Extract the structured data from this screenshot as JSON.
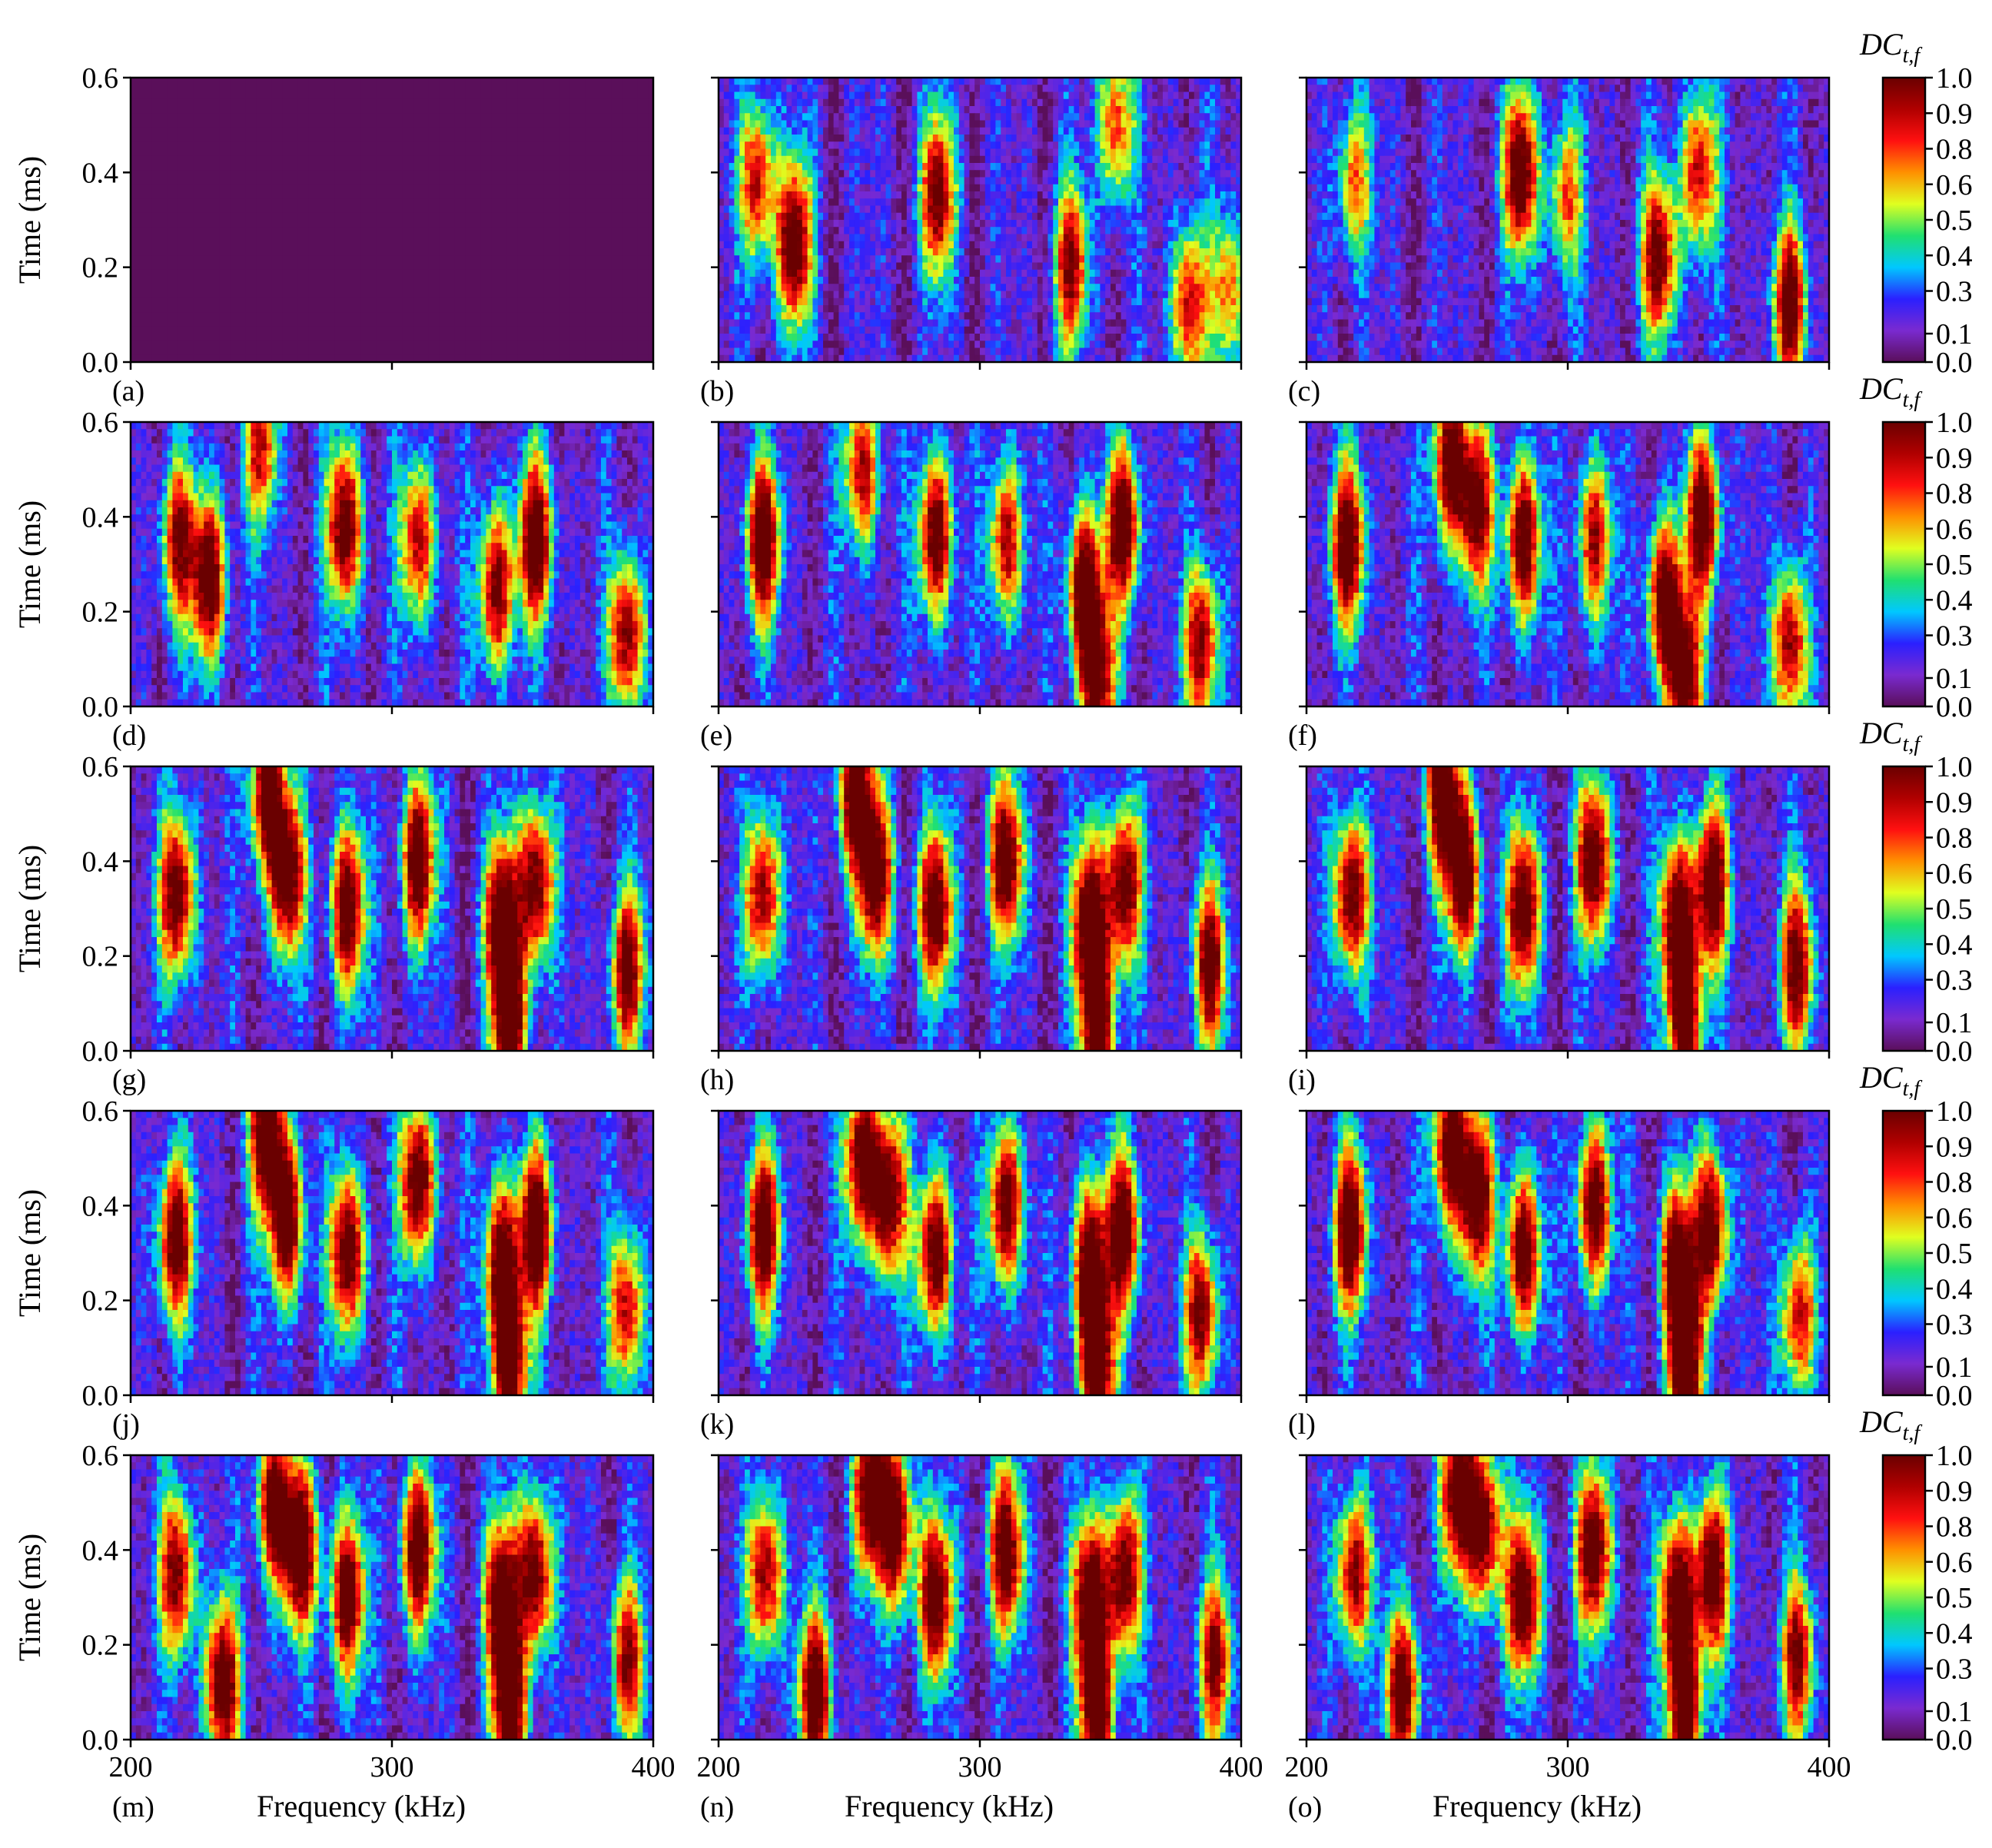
{
  "figure": {
    "panel_labels": [
      "(a)",
      "(b)",
      "(c)",
      "(d)",
      "(e)",
      "(f)",
      "(g)",
      "(h)",
      "(i)",
      "(j)",
      "(k)",
      "(l)",
      "(m)",
      "(n)",
      "(o)"
    ],
    "ylabel": "Time (ms)",
    "xlabel": "Frequency (kHz)",
    "colorbar_label": "DC",
    "colorbar_label_sub": "t,f",
    "colormap": [
      "#5a0f5a",
      "#7a2ad0",
      "#2a20ff",
      "#00c8ff",
      "#20e070",
      "#e0ff20",
      "#ff9000",
      "#ff1010",
      "#b00000",
      "#6a0000"
    ]
  },
  "chart_data": [
    {
      "type": "heatmap",
      "panel": "(a)",
      "x_range": [
        200,
        400
      ],
      "y_range": [
        0.0,
        0.6
      ],
      "value_range": [
        0.0,
        1.0
      ],
      "x_ticks": [
        200,
        300,
        400
      ],
      "y_ticks": [
        0.0,
        0.2,
        0.4,
        0.6
      ],
      "uniform_value": 0.0
    },
    {
      "type": "heatmap",
      "panel": "(b)",
      "x_range": [
        200,
        400
      ],
      "y_range": [
        0.0,
        0.6
      ],
      "value_range": [
        0.0,
        1.0
      ],
      "x_ticks": [
        200,
        300,
        400
      ],
      "y_ticks": [
        0.0,
        0.2,
        0.4,
        0.6
      ],
      "hotspots": [
        [
          215,
          0.38,
          0.8
        ],
        [
          229,
          0.25,
          1.0
        ],
        [
          284,
          0.35,
          0.9
        ],
        [
          352,
          0.5,
          0.7
        ],
        [
          335,
          0.2,
          0.8
        ],
        [
          380,
          0.12,
          0.8
        ],
        [
          395,
          0.15,
          0.6
        ]
      ]
    },
    {
      "type": "heatmap",
      "panel": "(c)",
      "x_range": [
        200,
        400
      ],
      "y_range": [
        0.0,
        0.6
      ],
      "value_range": [
        0.0,
        1.0
      ],
      "x_ticks": [
        200,
        300,
        400
      ],
      "y_ticks": [
        0.0,
        0.2,
        0.4,
        0.6
      ],
      "hotspots": [
        [
          218,
          0.38,
          0.6
        ],
        [
          282,
          0.4,
          1.0
        ],
        [
          299,
          0.35,
          0.6
        ],
        [
          350,
          0.4,
          0.8
        ],
        [
          335,
          0.22,
          0.9
        ],
        [
          385,
          0.12,
          0.9
        ]
      ]
    },
    {
      "type": "heatmap",
      "panel": "(d)",
      "x_range": [
        200,
        400
      ],
      "y_range": [
        0.0,
        0.6
      ],
      "value_range": [
        0.0,
        1.0
      ],
      "x_ticks": [
        200,
        300,
        400
      ],
      "y_ticks": [
        0.0,
        0.2,
        0.4,
        0.6
      ],
      "hotspots": [
        [
          218,
          0.35,
          0.8
        ],
        [
          230,
          0.27,
          1.0
        ],
        [
          250,
          0.55,
          0.7
        ],
        [
          282,
          0.38,
          1.0
        ],
        [
          310,
          0.35,
          0.8
        ],
        [
          340,
          0.25,
          0.9
        ],
        [
          355,
          0.35,
          1.0
        ],
        [
          390,
          0.15,
          0.9
        ]
      ]
    },
    {
      "type": "heatmap",
      "panel": "(e)",
      "x_range": [
        200,
        400
      ],
      "y_range": [
        0.0,
        0.6
      ],
      "value_range": [
        0.0,
        1.0
      ],
      "x_ticks": [
        200,
        300,
        400
      ],
      "y_ticks": [
        0.0,
        0.2,
        0.4,
        0.6
      ],
      "hotspots": [
        [
          217,
          0.35,
          1.0
        ],
        [
          255,
          0.5,
          0.8
        ],
        [
          283,
          0.36,
          1.0
        ],
        [
          310,
          0.35,
          0.8
        ],
        [
          340,
          0.25,
          1.0
        ],
        [
          355,
          0.38,
          1.0
        ],
        [
          345,
          0.05,
          0.9
        ],
        [
          385,
          0.13,
          0.9
        ]
      ]
    },
    {
      "type": "heatmap",
      "panel": "(f)",
      "x_range": [
        200,
        400
      ],
      "y_range": [
        0.0,
        0.6
      ],
      "value_range": [
        0.0,
        1.0
      ],
      "x_ticks": [
        200,
        300,
        400
      ],
      "y_ticks": [
        0.0,
        0.2,
        0.4,
        0.6
      ],
      "hotspots": [
        [
          216,
          0.34,
          1.0
        ],
        [
          255,
          0.52,
          1.0
        ],
        [
          265,
          0.42,
          0.9
        ],
        [
          283,
          0.35,
          1.0
        ],
        [
          310,
          0.35,
          0.8
        ],
        [
          337,
          0.22,
          1.0
        ],
        [
          352,
          0.4,
          1.0
        ],
        [
          345,
          0.05,
          0.9
        ],
        [
          385,
          0.13,
          0.9
        ]
      ]
    },
    {
      "type": "heatmap",
      "panel": "(g)",
      "x_range": [
        200,
        400
      ],
      "y_range": [
        0.0,
        0.6
      ],
      "value_range": [
        0.0,
        1.0
      ],
      "x_ticks": [
        200,
        300,
        400
      ],
      "y_ticks": [
        0.0,
        0.2,
        0.4,
        0.6
      ],
      "hotspots": [
        [
          218,
          0.33,
          1.0
        ],
        [
          252,
          0.55,
          1.0
        ],
        [
          260,
          0.37,
          1.0
        ],
        [
          283,
          0.3,
          1.0
        ],
        [
          310,
          0.4,
          1.0
        ],
        [
          342,
          0.28,
          1.0
        ],
        [
          355,
          0.35,
          1.0
        ],
        [
          345,
          0.05,
          1.0
        ],
        [
          390,
          0.17,
          0.9
        ]
      ]
    },
    {
      "type": "heatmap",
      "panel": "(h)",
      "x_range": [
        200,
        400
      ],
      "y_range": [
        0.0,
        0.6
      ],
      "value_range": [
        0.0,
        1.0
      ],
      "x_ticks": [
        200,
        300,
        400
      ],
      "y_ticks": [
        0.0,
        0.2,
        0.4,
        0.6
      ],
      "hotspots": [
        [
          217,
          0.33,
          0.9
        ],
        [
          252,
          0.55,
          1.0
        ],
        [
          260,
          0.37,
          1.0
        ],
        [
          283,
          0.3,
          1.0
        ],
        [
          310,
          0.4,
          1.0
        ],
        [
          342,
          0.28,
          1.0
        ],
        [
          355,
          0.35,
          1.0
        ],
        [
          345,
          0.05,
          1.0
        ],
        [
          388,
          0.18,
          0.9
        ]
      ]
    },
    {
      "type": "heatmap",
      "panel": "(i)",
      "x_range": [
        200,
        400
      ],
      "y_range": [
        0.0,
        0.6
      ],
      "value_range": [
        0.0,
        1.0
      ],
      "x_ticks": [
        200,
        300,
        400
      ],
      "y_ticks": [
        0.0,
        0.2,
        0.4,
        0.6
      ],
      "hotspots": [
        [
          217,
          0.33,
          1.0
        ],
        [
          252,
          0.55,
          1.0
        ],
        [
          260,
          0.37,
          1.0
        ],
        [
          283,
          0.3,
          1.0
        ],
        [
          310,
          0.4,
          1.0
        ],
        [
          342,
          0.28,
          1.0
        ],
        [
          355,
          0.35,
          1.0
        ],
        [
          345,
          0.05,
          1.0
        ],
        [
          388,
          0.18,
          0.9
        ]
      ]
    },
    {
      "type": "heatmap",
      "panel": "(j)",
      "x_range": [
        200,
        400
      ],
      "y_range": [
        0.0,
        0.6
      ],
      "value_range": [
        0.0,
        1.0
      ],
      "x_ticks": [
        200,
        300,
        400
      ],
      "y_ticks": [
        0.0,
        0.2,
        0.4,
        0.6
      ],
      "hotspots": [
        [
          217,
          0.33,
          1.0
        ],
        [
          252,
          0.55,
          1.0
        ],
        [
          260,
          0.37,
          1.0
        ],
        [
          283,
          0.3,
          1.0
        ],
        [
          310,
          0.45,
          1.0
        ],
        [
          342,
          0.28,
          1.0
        ],
        [
          355,
          0.35,
          1.0
        ],
        [
          345,
          0.05,
          1.0
        ],
        [
          390,
          0.18,
          0.8
        ]
      ]
    },
    {
      "type": "heatmap",
      "panel": "(k)",
      "x_range": [
        200,
        400
      ],
      "y_range": [
        0.0,
        0.6
      ],
      "value_range": [
        0.0,
        1.0
      ],
      "x_ticks": [
        200,
        300,
        400
      ],
      "y_ticks": [
        0.0,
        0.2,
        0.4,
        0.6
      ],
      "hotspots": [
        [
          217,
          0.35,
          1.0
        ],
        [
          255,
          0.5,
          1.0
        ],
        [
          265,
          0.42,
          1.0
        ],
        [
          283,
          0.3,
          1.0
        ],
        [
          310,
          0.4,
          1.0
        ],
        [
          342,
          0.28,
          1.0
        ],
        [
          355,
          0.35,
          1.0
        ],
        [
          345,
          0.05,
          1.0
        ],
        [
          385,
          0.17,
          0.9
        ]
      ]
    },
    {
      "type": "heatmap",
      "panel": "(l)",
      "x_range": [
        200,
        400
      ],
      "y_range": [
        0.0,
        0.6
      ],
      "value_range": [
        0.0,
        1.0
      ],
      "x_ticks": [
        200,
        300,
        400
      ],
      "y_ticks": [
        0.0,
        0.2,
        0.4,
        0.6
      ],
      "hotspots": [
        [
          217,
          0.35,
          1.0
        ],
        [
          255,
          0.52,
          1.0
        ],
        [
          265,
          0.42,
          1.0
        ],
        [
          283,
          0.3,
          1.0
        ],
        [
          310,
          0.4,
          1.0
        ],
        [
          342,
          0.28,
          1.0
        ],
        [
          355,
          0.35,
          1.0
        ],
        [
          345,
          0.05,
          1.0
        ],
        [
          388,
          0.17,
          0.8
        ]
      ]
    },
    {
      "type": "heatmap",
      "panel": "(m)",
      "x_range": [
        200,
        400
      ],
      "y_range": [
        0.0,
        0.6
      ],
      "value_range": [
        0.0,
        1.0
      ],
      "x_ticks": [
        200,
        300,
        400
      ],
      "y_ticks": [
        0.0,
        0.2,
        0.4,
        0.6
      ],
      "hotspots": [
        [
          218,
          0.35,
          0.9
        ],
        [
          235,
          0.12,
          1.0
        ],
        [
          255,
          0.5,
          1.0
        ],
        [
          265,
          0.4,
          1.0
        ],
        [
          283,
          0.3,
          1.0
        ],
        [
          310,
          0.4,
          1.0
        ],
        [
          342,
          0.3,
          1.0
        ],
        [
          355,
          0.35,
          1.0
        ],
        [
          345,
          0.05,
          1.0
        ],
        [
          390,
          0.17,
          0.8
        ]
      ]
    },
    {
      "type": "heatmap",
      "panel": "(n)",
      "x_range": [
        200,
        400
      ],
      "y_range": [
        0.0,
        0.6
      ],
      "value_range": [
        0.0,
        1.0
      ],
      "x_ticks": [
        200,
        300,
        400
      ],
      "y_ticks": [
        0.0,
        0.2,
        0.4,
        0.6
      ],
      "hotspots": [
        [
          218,
          0.35,
          0.9
        ],
        [
          237,
          0.1,
          1.0
        ],
        [
          258,
          0.52,
          1.0
        ],
        [
          268,
          0.45,
          1.0
        ],
        [
          283,
          0.3,
          1.0
        ],
        [
          310,
          0.4,
          1.0
        ],
        [
          342,
          0.3,
          1.0
        ],
        [
          355,
          0.35,
          1.0
        ],
        [
          345,
          0.05,
          1.0
        ],
        [
          390,
          0.17,
          0.8
        ]
      ]
    },
    {
      "type": "heatmap",
      "panel": "(o)",
      "x_range": [
        200,
        400
      ],
      "y_range": [
        0.0,
        0.6
      ],
      "value_range": [
        0.0,
        1.0
      ],
      "x_ticks": [
        200,
        300,
        400
      ],
      "y_ticks": [
        0.0,
        0.2,
        0.4,
        0.6
      ],
      "hotspots": [
        [
          218,
          0.35,
          0.9
        ],
        [
          237,
          0.1,
          1.0
        ],
        [
          258,
          0.52,
          1.0
        ],
        [
          268,
          0.45,
          1.0
        ],
        [
          283,
          0.3,
          1.0
        ],
        [
          310,
          0.4,
          1.0
        ],
        [
          342,
          0.3,
          1.0
        ],
        [
          355,
          0.35,
          1.0
        ],
        [
          345,
          0.05,
          1.0
        ],
        [
          388,
          0.17,
          0.8
        ]
      ]
    }
  ],
  "colorbar": {
    "ticks": [
      "0.0",
      "0.1",
      "0.3",
      "0.4",
      "0.5",
      "0.6",
      "0.8",
      "0.9",
      "1.0"
    ],
    "tick_values": [
      0.0,
      0.1,
      0.25,
      0.375,
      0.5,
      0.625,
      0.75,
      0.875,
      1.0
    ]
  }
}
